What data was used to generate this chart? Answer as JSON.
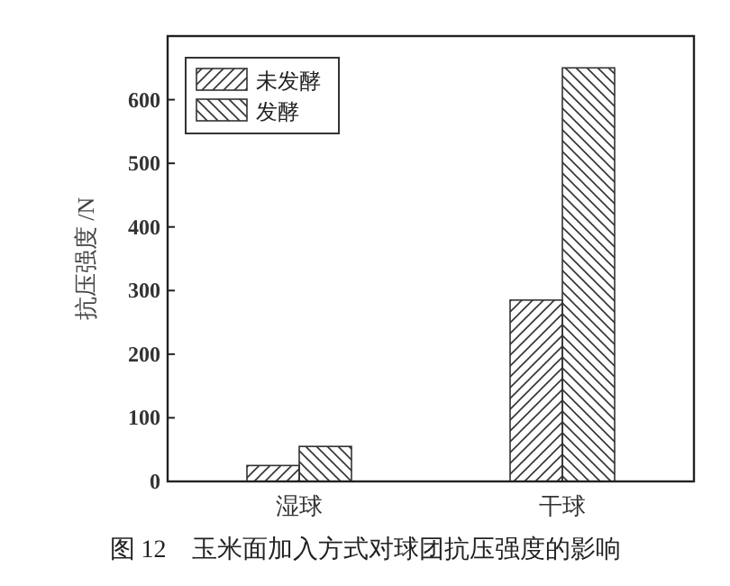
{
  "chart_data": {
    "type": "bar",
    "title": "图 12　玉米面加入方式对球团抗压强度的影响",
    "ylabel": "抗压强度 /N",
    "categories": [
      "湿球",
      "干球"
    ],
    "series": [
      {
        "name": "未发酵",
        "color": "#333333",
        "values": [
          25,
          285
        ]
      },
      {
        "name": "发酵",
        "color": "#333333",
        "values": [
          55,
          650
        ]
      }
    ],
    "ylim": [
      0,
      700
    ],
    "yticks": [
      0,
      100,
      200,
      300,
      400,
      500,
      600
    ],
    "legend": "top left"
  }
}
